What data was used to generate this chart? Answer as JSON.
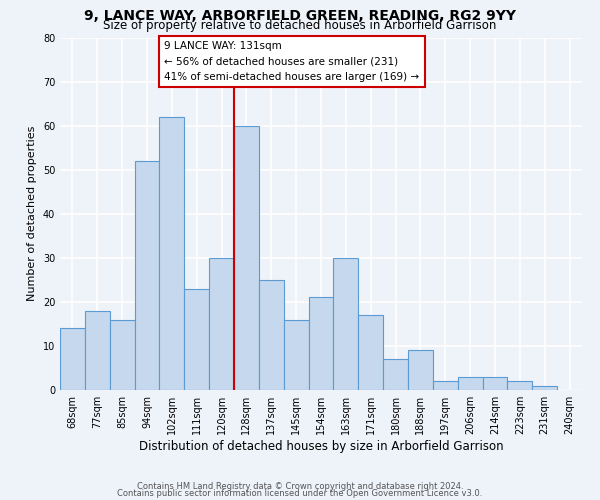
{
  "title1": "9, LANCE WAY, ARBORFIELD GREEN, READING, RG2 9YY",
  "title2": "Size of property relative to detached houses in Arborfield Garrison",
  "xlabel": "Distribution of detached houses by size in Arborfield Garrison",
  "ylabel": "Number of detached properties",
  "bar_labels": [
    "68sqm",
    "77sqm",
    "85sqm",
    "94sqm",
    "102sqm",
    "111sqm",
    "120sqm",
    "128sqm",
    "137sqm",
    "145sqm",
    "154sqm",
    "163sqm",
    "171sqm",
    "180sqm",
    "188sqm",
    "197sqm",
    "206sqm",
    "214sqm",
    "223sqm",
    "231sqm",
    "240sqm"
  ],
  "bar_heights": [
    14,
    18,
    16,
    52,
    62,
    23,
    30,
    60,
    25,
    16,
    21,
    30,
    17,
    7,
    9,
    2,
    3,
    3,
    2,
    1,
    0
  ],
  "bar_color": "#c5d8ed",
  "bar_edge_color": "#5b9bd5",
  "highlight_line_color": "#cc0000",
  "highlight_bar_index": 7,
  "annotation_title": "9 LANCE WAY: 131sqm",
  "annotation_line1": "← 56% of detached houses are smaller (231)",
  "annotation_line2": "41% of semi-detached houses are larger (169) →",
  "annotation_box_color": "#ffffff",
  "annotation_box_edge": "#cc0000",
  "ylim": [
    0,
    80
  ],
  "yticks": [
    0,
    10,
    20,
    30,
    40,
    50,
    60,
    70,
    80
  ],
  "footnote1": "Contains HM Land Registry data © Crown copyright and database right 2024.",
  "footnote2": "Contains public sector information licensed under the Open Government Licence v3.0.",
  "background_color": "#eef2f9",
  "grid_color": "#ffffff",
  "title1_fontsize": 10,
  "title2_fontsize": 8.5,
  "xlabel_fontsize": 8.5,
  "ylabel_fontsize": 8,
  "tick_fontsize": 7,
  "annotation_fontsize": 7.5,
  "footnote_fontsize": 6
}
